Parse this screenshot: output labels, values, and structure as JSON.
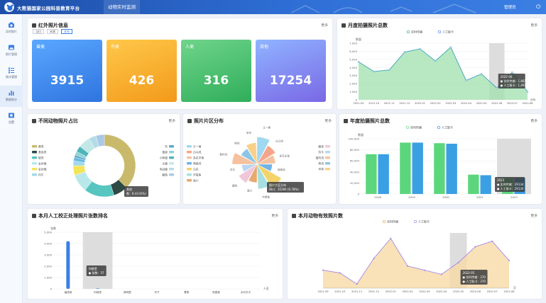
{
  "header": {
    "title": "大熊猫国家公园科普教育平台",
    "nav": "动物实时监测",
    "user": "管理员",
    "power_icon": "power-icon"
  },
  "sidebar": {
    "items": [
      {
        "label": "实时照片",
        "icon": "camera-icon"
      },
      {
        "label": "照片管理",
        "icon": "image-icon"
      },
      {
        "label": "统计管理",
        "icon": "list-icon"
      },
      {
        "label": "数据统计",
        "icon": "bar-chart-icon"
      },
      {
        "label": "设置",
        "icon": "settings-icon"
      }
    ]
  },
  "colors": {
    "header": "#2f6fd6",
    "green": "#5cd67c",
    "blue": "#3b7fe3",
    "orange": "#f7b23a",
    "purple": "#9a7fe8"
  },
  "ir": {
    "title": "红外照片信息",
    "more": "更多",
    "tabs": [
      "当日",
      "本周",
      "本年"
    ],
    "stats": [
      {
        "label": "兽类",
        "value": "3915"
      },
      {
        "label": "鸟类",
        "value": "426"
      },
      {
        "label": "人类",
        "value": "316"
      },
      {
        "label": "其他",
        "value": "17254"
      }
    ]
  },
  "monthly": {
    "title": "月度拍摄照片总数",
    "more": "更多"
  },
  "pie": {
    "title": "不同动物照片占比",
    "more": "更多",
    "tooltip": {
      "name": "其他",
      "value": "数：8 (0.01%)"
    }
  },
  "dist": {
    "title": "照片片区分布",
    "more": "更多",
    "tooltip": {
      "name": "照片片区分布",
      "value": "四川：35284 (6.78%)"
    }
  },
  "yearly": {
    "title": "年度拍摄照片总数",
    "more": "更多",
    "tooltip": {
      "year": "2023",
      "a": "实时传输：29134",
      "b": "人工取卡：29134"
    }
  },
  "rank": {
    "title": "本月人工校正处理照片张数排名",
    "more": "更多",
    "tooltip": {
      "name": "何维堂",
      "value": "张数：37"
    }
  },
  "valid": {
    "title": "本月动物有效照片数",
    "more": "更多",
    "tooltip": {
      "month": "2022-05",
      "a": "实时传输：370",
      "b": "人工取卡：370"
    }
  },
  "chart_data": [
    {
      "type": "area",
      "title": "月度拍摄照片总数",
      "ylabel": "数量",
      "ylim": [
        0,
        7000
      ],
      "legend": [
        "实时传输",
        "人工取卡"
      ],
      "categories": [
        "2021-09",
        "2021-10",
        "2021-11",
        "2021-12",
        "2022-01",
        "2022-02",
        "2022-03",
        "2022-04",
        "2022-05",
        "2022-06",
        "2022-07",
        "2022-08"
      ],
      "series": [
        {
          "name": "实时传输",
          "values": [
            4700,
            3500,
            3700,
            5900,
            6300,
            4800,
            6500,
            2400,
            3200,
            1461,
            3400,
            1000
          ]
        },
        {
          "name": "人工取卡",
          "values": [
            4700,
            3500,
            3700,
            5900,
            6300,
            4800,
            6500,
            2400,
            3200,
            1461,
            3400,
            1000
          ]
        }
      ],
      "tooltip": {
        "x": "2022-06",
        "a": "实时传输：1,461",
        "b": "人工取卡：1,461"
      },
      "xlabel": "月份"
    },
    {
      "type": "pie",
      "title": "不同动物照片占比",
      "categories": [
        "兽类",
        "食肉类",
        "雉类",
        "金丝猴",
        "金丝猴",
        "羚牛",
        "熊科",
        "羚",
        "偶蹄",
        "小熊猫",
        "水鹿",
        "毛冠鹿",
        "藏酋"
      ],
      "values": [
        60,
        12,
        25,
        15,
        8,
        4,
        3,
        2,
        3,
        5,
        10,
        6,
        7
      ]
    },
    {
      "type": "pie",
      "title": "照片片区分布",
      "categories": [
        "王一棒",
        "白马鸡",
        "多花羊角",
        "熊蛛鸡",
        "白花",
        "毕提鱼",
        "高川",
        "藏身",
        "羚牛",
        "黄羚鸡",
        "熊鸡",
        "甲亭"
      ],
      "values": [
        6.78,
        5,
        4,
        3,
        7,
        6,
        4,
        5,
        3,
        6,
        4,
        5
      ]
    },
    {
      "type": "bar",
      "title": "年度拍摄照片总数",
      "ylabel": "数量",
      "ylim": [
        0,
        100000
      ],
      "legend": [
        "实时传输",
        "人工取卡"
      ],
      "categories": [
        "2018",
        "2019",
        "2020",
        "2021",
        "2023"
      ],
      "series": [
        {
          "name": "实时传输",
          "values": [
            72000,
            93000,
            92000,
            35000,
            29134
          ]
        },
        {
          "name": "人工取卡",
          "values": [
            72000,
            93000,
            91000,
            34000,
            29134
          ]
        }
      ]
    },
    {
      "type": "bar",
      "title": "本月人工校正处理照片张数排名",
      "ylabel": "张数",
      "xlabel": "人员",
      "ylim": [
        0,
        5000
      ],
      "categories": [
        "潘成雄",
        "何维堂",
        "邵明霞",
        "刘子",
        "曹刚",
        "翁国营",
        "余可夫平"
      ],
      "values": [
        4200,
        37,
        0,
        0,
        0,
        0,
        0
      ]
    },
    {
      "type": "area",
      "title": "本月动物有效照片数",
      "legend": [
        "实时传输",
        "人工取卡"
      ],
      "xlabel": "月",
      "categories": [
        "2021-09",
        "2021-10",
        "2021-11",
        "2021-12",
        "2022-01",
        "2022-02",
        "2022-03",
        "2022-04",
        "2022-05",
        "2022-06",
        "2022-07",
        "2022-08"
      ],
      "series": [
        {
          "name": "实时传输",
          "values": [
            260,
            220,
            60,
            430,
            720,
            320,
            260,
            200,
            370,
            600,
            680,
            400
          ]
        },
        {
          "name": "人工取卡",
          "values": [
            260,
            220,
            60,
            430,
            720,
            320,
            260,
            200,
            370,
            600,
            680,
            400
          ]
        }
      ]
    }
  ]
}
